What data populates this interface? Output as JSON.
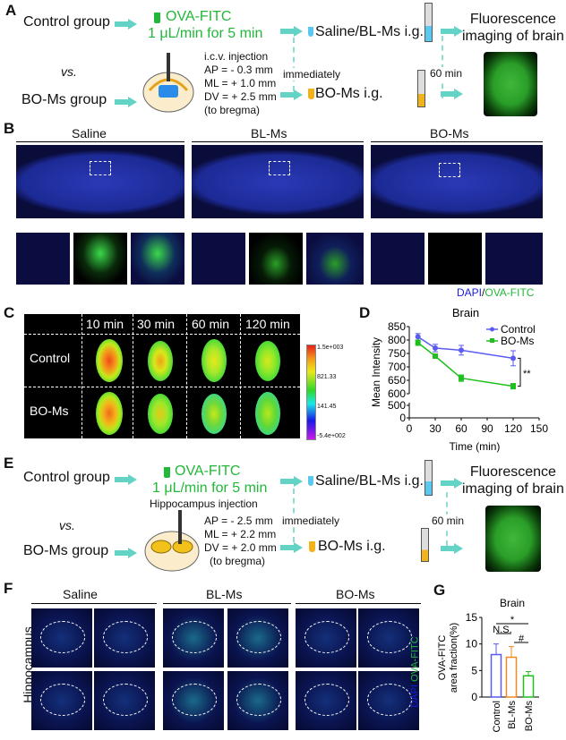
{
  "panels": {
    "a": "A",
    "b": "B",
    "c": "C",
    "d": "D",
    "e": "E",
    "f": "F",
    "g": "G"
  },
  "schemeA": {
    "control_group": "Control group",
    "vs": "vs.",
    "boms_group": "BO-Ms group",
    "ova": "OVA-FITC",
    "rate": "1 μL/min for 5 min",
    "injection": "i.c.v. injection",
    "coords": [
      "AP = - 0.3 mm",
      "ML = + 1.0 mm",
      "DV = + 2.5 mm",
      "(to bregma)"
    ],
    "immediately": "immediately",
    "saline_bl": "Saline/BL-Ms i.g.",
    "boms_ig": "BO-Ms i.g.",
    "sixty": "60 min",
    "imaging": [
      "Fluorescence",
      "imaging of brain"
    ]
  },
  "panelB": {
    "columns": [
      "Saline",
      "BL-Ms",
      "BO-Ms"
    ],
    "legend_dapi": "DAPI",
    "legend_sep": "/",
    "legend_ova": "OVA-FITC"
  },
  "panelC": {
    "times": [
      "10 min",
      "30 min",
      "60 min",
      "120 min"
    ],
    "rows": [
      "Control",
      "BO-Ms"
    ],
    "colorbar": [
      "1.5e+003",
      "821.33",
      "141.45",
      "-5.4e+002"
    ]
  },
  "schemeE": {
    "control_group": "Control group",
    "vs": "vs.",
    "boms_group": "BO-Ms group",
    "ova": "OVA-FITC",
    "rate": "1 μL/min for 5 min",
    "injection": "Hippocampus injection",
    "coords": [
      "AP = - 2.5 mm",
      "ML = + 2.2 mm",
      "DV = + 2.0 mm",
      "(to bregma)"
    ],
    "immediately": "immediately",
    "saline_bl": "Saline/BL-Ms i.g.",
    "boms_ig": "BO-Ms i.g.",
    "sixty": "60 min",
    "imaging": [
      "Fluorescence",
      "imaging of brain"
    ]
  },
  "panelF": {
    "columns": [
      "Saline",
      "BL-Ms",
      "BO-Ms"
    ],
    "row_label": "Hippocampus",
    "legend_dapi": "DAPI",
    "legend_sep": "/",
    "legend_ova": "OVA-FITC"
  },
  "colors": {
    "control": "#5b5bef",
    "boms": "#1fbf1f",
    "blms": "#f28a1e",
    "arrow": "#62d3c4",
    "fitc": "#22b83a",
    "dapi": "#1a1adb"
  },
  "chart_data": [
    {
      "type": "line",
      "title": "Brain",
      "xlabel": "Time (min)",
      "ylabel": "Mean Intensity",
      "x": [
        10,
        30,
        60,
        120
      ],
      "xlim": [
        0,
        150
      ],
      "xticks": [
        0,
        30,
        60,
        90,
        120,
        150
      ],
      "ylim": [
        600,
        850
      ],
      "yticks": [
        850,
        800,
        750,
        700,
        650,
        600
      ],
      "broken_axis_ticks": [
        500,
        0
      ],
      "legend": "top-right",
      "significance": "**",
      "series": [
        {
          "name": "Control",
          "values": [
            812,
            770,
            762,
            732
          ],
          "errors": [
            12,
            14,
            18,
            28
          ],
          "color": "#5b5bef",
          "marker": "circle"
        },
        {
          "name": "BO-Ms",
          "values": [
            790,
            740,
            658,
            628
          ],
          "errors": [
            10,
            5,
            12,
            10
          ],
          "color": "#1fbf1f",
          "marker": "square"
        }
      ]
    },
    {
      "type": "bar",
      "title": "Brain",
      "ylabel": [
        "OVA-FITC",
        "area fraction(%)"
      ],
      "categories": [
        "Control",
        "BL-Ms",
        "BO-Ms"
      ],
      "values": [
        8,
        7.5,
        4
      ],
      "errors": [
        2,
        2,
        0.8
      ],
      "colors": [
        "#5b5bef",
        "#f28a1e",
        "#1fbf1f"
      ],
      "ylim": [
        0,
        15
      ],
      "yticks": [
        0,
        5,
        10,
        15
      ],
      "annotations": [
        {
          "text": "*",
          "between": [
            "Control",
            "BO-Ms"
          ]
        },
        {
          "text": "N.S.",
          "between": [
            "Control",
            "BL-Ms"
          ]
        },
        {
          "text": "#",
          "between": [
            "BL-Ms",
            "BO-Ms"
          ]
        }
      ]
    }
  ]
}
